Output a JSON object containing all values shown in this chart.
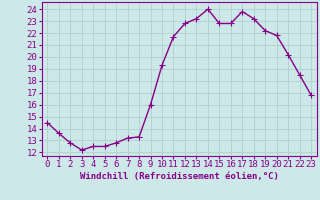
{
  "x": [
    0,
    1,
    2,
    3,
    4,
    5,
    6,
    7,
    8,
    9,
    10,
    11,
    12,
    13,
    14,
    15,
    16,
    17,
    18,
    19,
    20,
    21,
    22,
    23
  ],
  "y": [
    14.5,
    13.6,
    12.8,
    12.2,
    12.5,
    12.5,
    12.8,
    13.2,
    13.3,
    16.0,
    19.3,
    21.7,
    22.8,
    23.2,
    24.0,
    22.8,
    22.8,
    23.8,
    23.2,
    22.2,
    21.8,
    20.2,
    18.5,
    16.8
  ],
  "line_color": "#880088",
  "marker": "+",
  "marker_size": 4,
  "bg_color": "#cce8e8",
  "grid_color": "#aacccc",
  "xlabel": "Windchill (Refroidissement éolien,°C)",
  "ylabel_ticks": [
    12,
    13,
    14,
    15,
    16,
    17,
    18,
    19,
    20,
    21,
    22,
    23,
    24
  ],
  "ylim": [
    11.7,
    24.6
  ],
  "xlim": [
    -0.5,
    23.5
  ],
  "xlabel_fontsize": 6.5,
  "tick_fontsize": 6.5,
  "line_width": 1.0
}
